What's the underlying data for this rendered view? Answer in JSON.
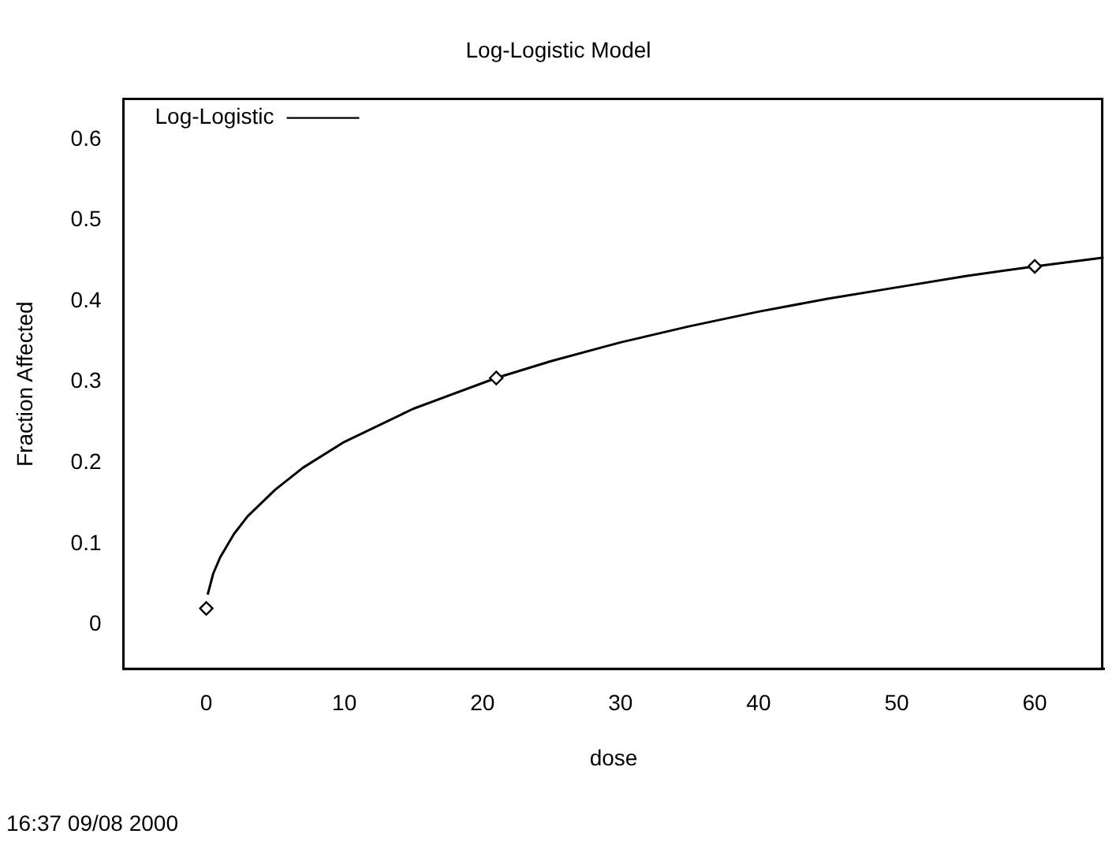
{
  "chart_data": {
    "type": "line",
    "title": "Log-Logistic Model",
    "xlabel": "dose",
    "ylabel": "Fraction Affected",
    "xlim": [
      -6,
      65
    ],
    "xticks": [
      0,
      10,
      20,
      30,
      40,
      50,
      60
    ],
    "ylim": [
      -0.055,
      0.65
    ],
    "yticks": [
      0,
      0.1,
      0.2,
      0.3,
      0.4,
      0.5,
      0.6
    ],
    "grid": false,
    "legend": "top left",
    "annotations": [
      "16:37 09/08 2000"
    ],
    "series": [
      {
        "name": "Log-Logistic",
        "type": "line",
        "color": "#000000",
        "marker": "none",
        "line_style": "solid",
        "x": [
          0.1,
          0.5,
          1,
          2,
          3,
          5,
          7,
          10,
          15,
          21,
          25,
          30,
          35,
          40,
          45,
          50,
          55,
          60,
          65
        ],
        "values": [
          0.037,
          0.063,
          0.083,
          0.112,
          0.134,
          0.167,
          0.194,
          0.226,
          0.267,
          0.305,
          0.326,
          0.349,
          0.369,
          0.387,
          0.403,
          0.417,
          0.431,
          0.443,
          0.454
        ]
      },
      {
        "type": "scatter",
        "color": "#000000",
        "marker": "diamond",
        "x": [
          0,
          21,
          60
        ],
        "values": [
          0.02,
          0.305,
          0.443
        ]
      }
    ]
  }
}
